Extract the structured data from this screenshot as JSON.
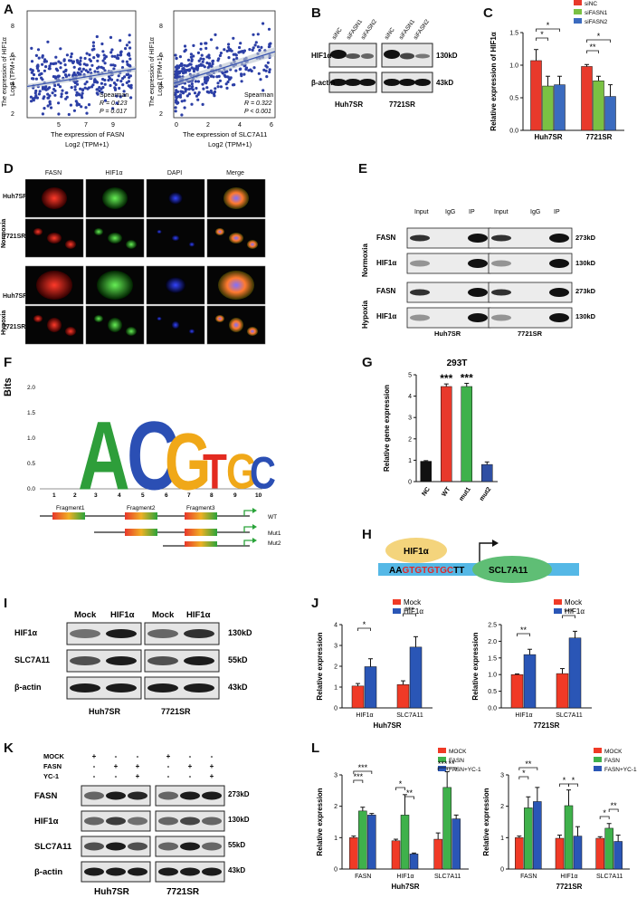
{
  "panels": {
    "A": "A",
    "B": "B",
    "C": "C",
    "D": "D",
    "E": "E",
    "F": "F",
    "G": "G",
    "H": "H",
    "I": "I",
    "J": "J",
    "K": "K",
    "L": "L"
  },
  "panelA": {
    "left": {
      "ylabel1": "The expression of HIF1α",
      "ylabel2": "Log2 (TPM+1)",
      "xlabel1": "The expression of FASN",
      "xlabel2": "Log2 (TPM+1)",
      "stat_method": "Spearman",
      "r": "R = 0.123",
      "p": "P = 0.017",
      "xticks": [
        "5",
        "7",
        "9"
      ],
      "yticks": [
        "2",
        "4",
        "6",
        "8"
      ]
    },
    "right": {
      "ylabel1": "The expression of HIF1α",
      "ylabel2": "Log2 (TPM+1)",
      "xlabel1": "The expression of SLC7A11",
      "xlabel2": "Log2 (TPM+1)",
      "stat_method": "Spearman",
      "r": "R = 0.322",
      "p": "P < 0.001",
      "xticks": [
        "0",
        "2",
        "4",
        "6"
      ],
      "yticks": [
        "2",
        "4",
        "6",
        "8"
      ]
    }
  },
  "panelB": {
    "lanes": [
      "siNC",
      "siFASN1",
      "siFASN2",
      "siNC",
      "siFASN1",
      "siFASN2"
    ],
    "rows": [
      "HIF1α",
      "β-actin"
    ],
    "sizes": [
      "130kD",
      "43kD"
    ],
    "cells": [
      "Huh7SR",
      "7721SR"
    ]
  },
  "chart_data": [
    {
      "id": "C",
      "type": "bar",
      "ylabel": "Relative expression of HIF1α",
      "categories": [
        "Huh7SR",
        "7721SR"
      ],
      "ylim": [
        0,
        1.5
      ],
      "yticks": [
        "0.0",
        "0.5",
        "1.0",
        "1.5"
      ],
      "series": [
        {
          "name": "siNC",
          "color": "#e8392b",
          "values": [
            1.07,
            0.98
          ]
        },
        {
          "name": "siFASN1",
          "color": "#7ac143",
          "values": [
            0.68,
            0.76
          ]
        },
        {
          "name": "siFASN2",
          "color": "#3b6bbf",
          "values": [
            0.7,
            0.52
          ]
        }
      ],
      "errors": [
        [
          0.17,
          0.03
        ],
        [
          0.15,
          0.07
        ],
        [
          0.13,
          0.18
        ]
      ],
      "annotations": [
        "*",
        "*",
        "**",
        "*"
      ]
    },
    {
      "id": "G",
      "type": "bar",
      "title": "293T",
      "ylabel": "Relative gene expression",
      "categories": [
        "NC",
        "WT",
        "mut1",
        "mut2"
      ],
      "ylim": [
        0,
        5
      ],
      "yticks": [
        "0",
        "1",
        "2",
        "3",
        "4",
        "5"
      ],
      "values": [
        0.95,
        4.45,
        4.45,
        0.8
      ],
      "errors": [
        0.03,
        0.12,
        0.15,
        0.12
      ],
      "colors": [
        "#111111",
        "#e8392b",
        "#3fb14b",
        "#2f4fa3"
      ],
      "annotations": [
        "",
        "***",
        "***",
        ""
      ]
    },
    {
      "id": "J1",
      "type": "bar",
      "ylabel": "Relative expression",
      "xlabel": "Huh7SR",
      "categories": [
        "HIF1α",
        "SLC7A11"
      ],
      "ylim": [
        0,
        4
      ],
      "yticks": [
        "0",
        "1",
        "2",
        "3",
        "4"
      ],
      "series": [
        {
          "name": "Mock",
          "color": "#f03a26",
          "values": [
            1.05,
            1.12
          ]
        },
        {
          "name": "HIF1α",
          "color": "#2a56b6",
          "values": [
            1.98,
            2.92
          ]
        }
      ],
      "errors": [
        [
          0.12,
          0.18
        ],
        [
          0.38,
          0.5
        ]
      ],
      "annotations": [
        "*",
        "***"
      ]
    },
    {
      "id": "J2",
      "type": "bar",
      "ylabel": "Relative expression",
      "xlabel": "7721SR",
      "categories": [
        "HIF1α",
        "SLC7A11"
      ],
      "ylim": [
        0,
        2.5
      ],
      "yticks": [
        "0.0",
        "0.5",
        "1.0",
        "1.5",
        "2.0",
        "2.5"
      ],
      "series": [
        {
          "name": "Mock",
          "color": "#f03a26",
          "values": [
            1.0,
            1.03
          ]
        },
        {
          "name": "HIF1α",
          "color": "#2a56b6",
          "values": [
            1.6,
            2.1
          ]
        }
      ],
      "errors": [
        [
          0.02,
          0.15
        ],
        [
          0.16,
          0.2
        ]
      ],
      "annotations": [
        "**",
        "***"
      ]
    },
    {
      "id": "L1",
      "type": "bar",
      "ylabel": "Relative expression",
      "xlabel": "Huh7SR",
      "categories": [
        "FASN",
        "HIF1α",
        "SLC7A11"
      ],
      "ylim": [
        0,
        3
      ],
      "yticks": [
        "0",
        "1",
        "2",
        "3"
      ],
      "series": [
        {
          "name": "MOCK",
          "color": "#f03a26",
          "values": [
            1.0,
            0.9,
            0.95
          ]
        },
        {
          "name": "FASN",
          "color": "#3fb14b",
          "values": [
            1.85,
            1.72,
            2.6
          ]
        },
        {
          "name": "FASN+YC-1",
          "color": "#2a56b6",
          "values": [
            1.72,
            0.48,
            1.6
          ]
        }
      ],
      "errors": [
        [
          0.05,
          0.05,
          0.2
        ],
        [
          0.12,
          0.65,
          0.5
        ],
        [
          0.05,
          0.03,
          0.12
        ]
      ],
      "annotations": [
        "***",
        "***",
        "*",
        "**",
        "***",
        "**"
      ]
    },
    {
      "id": "L2",
      "type": "bar",
      "ylabel": "Relative expression",
      "xlabel": "7721SR",
      "categories": [
        "FASN",
        "HIF1α",
        "SLC7A11"
      ],
      "ylim": [
        0,
        3
      ],
      "yticks": [
        "0",
        "1",
        "2",
        "3"
      ],
      "series": [
        {
          "name": "MOCK",
          "color": "#f03a26",
          "values": [
            1.0,
            0.98,
            0.98
          ]
        },
        {
          "name": "FASN",
          "color": "#3fb14b",
          "values": [
            1.95,
            2.02,
            1.3
          ]
        },
        {
          "name": "FASN+YC-1",
          "color": "#2a56b6",
          "values": [
            2.15,
            1.05,
            0.88
          ]
        }
      ],
      "errors": [
        [
          0.05,
          0.1,
          0.05
        ],
        [
          0.35,
          0.5,
          0.15
        ],
        [
          0.45,
          0.3,
          0.2
        ]
      ],
      "annotations": [
        "*",
        "**",
        "*",
        "*",
        "*",
        "**"
      ]
    }
  ],
  "panelD": {
    "cols": [
      "FASN",
      "HIF1α",
      "DAPI",
      "Merge"
    ],
    "groups": [
      "Normoxia",
      "Hypoxia"
    ],
    "rows": [
      "Huh7SR",
      "7721SR",
      "Huh7SR",
      "7721SR"
    ]
  },
  "panelE": {
    "cols": [
      "Input",
      "IgG",
      "IP",
      "Input",
      "IgG",
      "IP"
    ],
    "groups": [
      "Normoxia",
      "Hypoxia"
    ],
    "rows": [
      "FASN",
      "HIF1α",
      "FASN",
      "HIF1α"
    ],
    "sizes": [
      "273kD",
      "130kD",
      "273kD",
      "130kD"
    ],
    "cells": [
      "Huh7SR",
      "7721SR"
    ]
  },
  "panelF": {
    "ylabel": "Bits",
    "yticks": [
      "0.0",
      "0.5",
      "1.0",
      "1.5",
      "2.0"
    ],
    "xticks": [
      "1",
      "2",
      "3",
      "4",
      "5",
      "6",
      "7",
      "8",
      "9",
      "10"
    ],
    "logo_letters": [
      "A",
      "C",
      "G",
      "T",
      "G",
      "C"
    ],
    "fragments": [
      "Fragment1",
      "Fragment2",
      "Fragment3"
    ],
    "constructs": [
      "WT",
      "Mut1",
      "Mut2"
    ]
  },
  "panelH": {
    "tf": "HIF1α",
    "seq_prefix": "AA",
    "seq_motif": "GTGTGTGC",
    "seq_suffix": "TT",
    "gene": "SCL7A11"
  },
  "panelI": {
    "lanes": [
      "Mock",
      "HIF1α",
      "Mock",
      "HIF1α"
    ],
    "rows": [
      "HIF1α",
      "SLC7A11",
      "β-actin"
    ],
    "sizes": [
      "130kD",
      "55kD",
      "43kD"
    ],
    "cells": [
      "Huh7SR",
      "7721SR"
    ]
  },
  "panelK": {
    "conditions": [
      "MOCK",
      "FASN",
      "YC-1"
    ],
    "signs": [
      [
        "+",
        "-",
        "-",
        "+",
        "-",
        "-"
      ],
      [
        "-",
        "+",
        "+",
        "-",
        "+",
        "+"
      ],
      [
        "-",
        "-",
        "+",
        "-",
        "-",
        "+"
      ]
    ],
    "rows": [
      "FASN",
      "HIF1α",
      "SLC7A11",
      "β-actin"
    ],
    "sizes": [
      "273kD",
      "130kD",
      "55kD",
      "43kD"
    ],
    "cells": [
      "Huh7SR",
      "7721SR"
    ]
  }
}
